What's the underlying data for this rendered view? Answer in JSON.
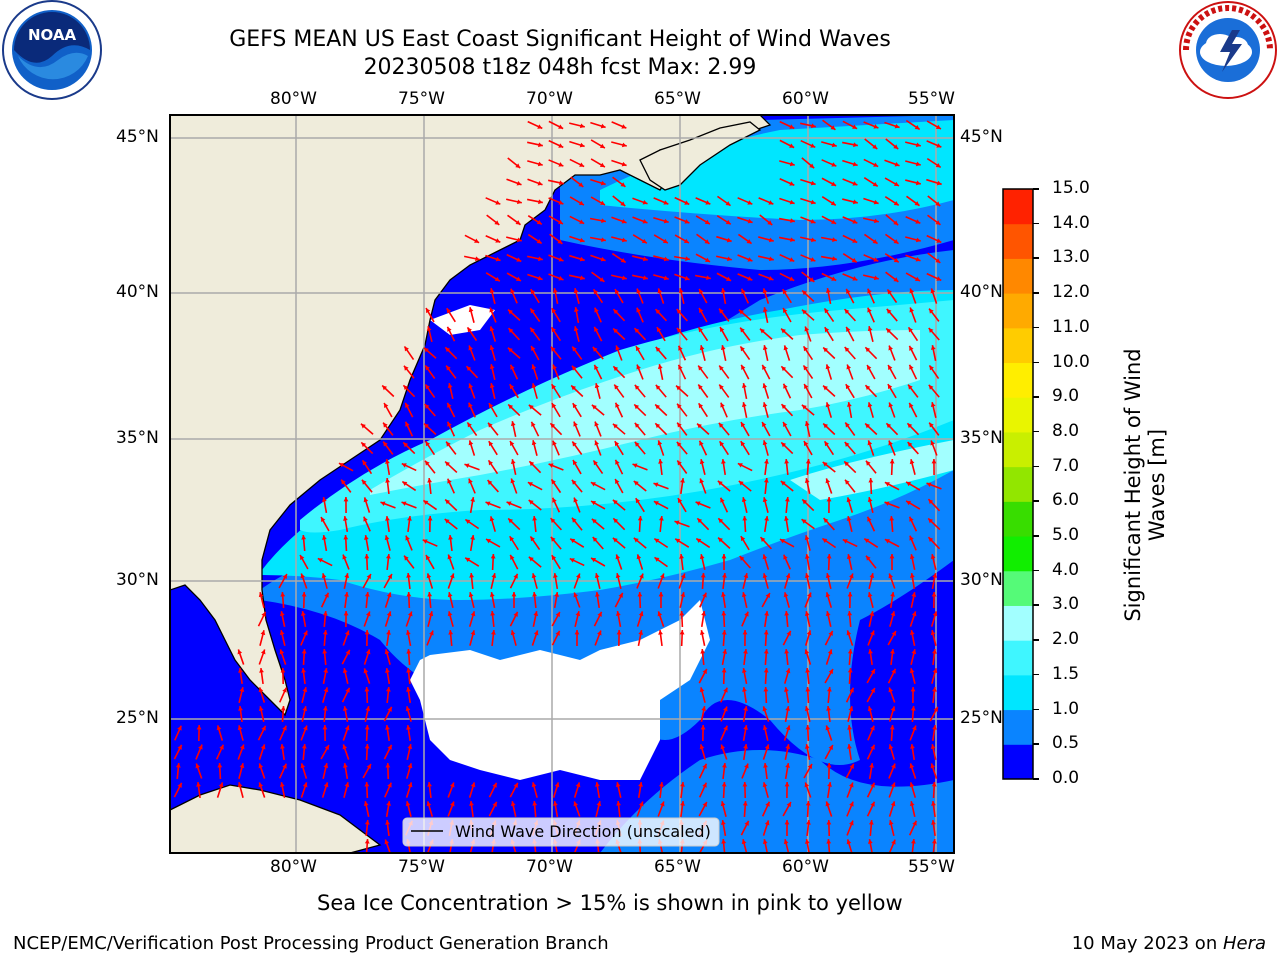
{
  "header": {
    "title_line1": "GEFS MEAN US East Coast Significant Height of Wind Waves",
    "title_line2": "20230508 t18z 048h fcst   Max: 2.99"
  },
  "logos": {
    "left_icon": "noaa-logo-icon",
    "left_text": "NOAA",
    "right_icon": "national-weather-service-logo-icon",
    "right_text": "NATIONAL WEATHER SERVICE"
  },
  "map": {
    "lon_labels": [
      "80°W",
      "75°W",
      "70°W",
      "65°W",
      "60°W",
      "55°W"
    ],
    "lat_labels": [
      "45°N",
      "40°N",
      "35°N",
      "30°N",
      "25°N"
    ],
    "land_color": "#efecdb",
    "arrow_color": "#ff0000",
    "legend_text": "Wind Wave Direction (unscaled)"
  },
  "colorbar": {
    "label_line1": "Significant Height of Wind",
    "label_line2": "Waves [m]",
    "ticks": [
      "0.0",
      "0.5",
      "1.0",
      "1.5",
      "2.0",
      "3.0",
      "4.0",
      "5.0",
      "6.0",
      "7.0",
      "8.0",
      "9.0",
      "10.0",
      "11.0",
      "12.0",
      "13.0",
      "14.0",
      "15.0"
    ],
    "colors": [
      "#0000ff",
      "#0a84ff",
      "#00e6ff",
      "#3ff6ff",
      "#a2ffff",
      "#55fa78",
      "#11ee00",
      "#38dd00",
      "#92e600",
      "#c9ef00",
      "#e9f500",
      "#ffee00",
      "#ffcc00",
      "#ffaa00",
      "#ff8800",
      "#ff5500",
      "#ff2200"
    ]
  },
  "caption": "Sea Ice Concentration > 15% is shown in pink to yellow",
  "footer": {
    "left": "NCEP/EMC/Verification Post Processing Product Generation Branch",
    "date": "10 May 2023 on ",
    "host": "Hera"
  }
}
